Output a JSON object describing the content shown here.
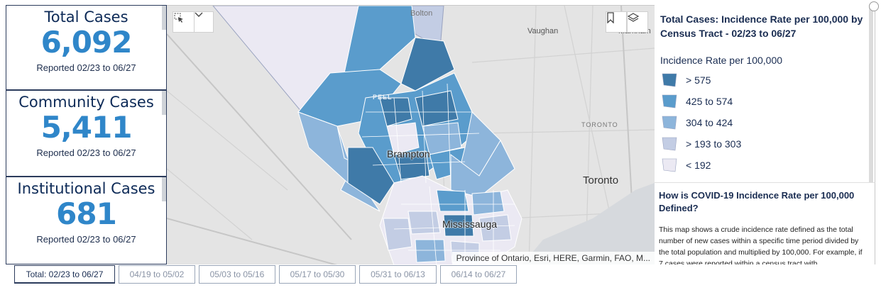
{
  "stats": [
    {
      "title": "Total Cases",
      "value": "6,092",
      "subtitle": "Reported 02/23 to 06/27"
    },
    {
      "title": "Community Cases",
      "value": "5,411",
      "subtitle": "Reported 02/23 to 06/27"
    },
    {
      "title": "Institutional Cases",
      "value": "681",
      "subtitle": "Reported 02/23 to 06/27"
    }
  ],
  "map": {
    "places": {
      "bolton": "Bolton",
      "vaughan": "Vaughan",
      "markham": "Markham",
      "peel": "PEEL",
      "brampton": "Brampton",
      "toronto_upper": "TORONTO",
      "toronto": "Toronto",
      "mississauga": "Mississauga"
    },
    "attribution": "Province of Ontario, Esri, HERE, Garmin, FAO, M...",
    "tools": {
      "select_icon": "select-tool-icon",
      "dropdown_icon": "chevron-down-icon",
      "bookmark_icon": "bookmark-icon",
      "layers_icon": "layers-icon"
    }
  },
  "legend": {
    "title": "Total Cases: Incidence Rate per 100,000 by Census Tract - 02/23 to 06/27",
    "heading": "Incidence Rate per 100,000",
    "classes": [
      {
        "label": "> 575",
        "color": "#3f7aa8"
      },
      {
        "label": "425 to 574",
        "color": "#5a9ccc"
      },
      {
        "label": "304 to 424",
        "color": "#8db5db"
      },
      {
        "label": "> 193 to 303",
        "color": "#c3cde4"
      },
      {
        "label": "< 192",
        "color": "#ebe9f3"
      }
    ]
  },
  "info": {
    "title": "How is COVID-19 Incidence Rate per 100,000 Defined?",
    "body": "This map shows a crude incidence rate defined as the total number of new cases within a specific time period divided by the total population and multiplied by 100,000. For example, if 7 cases were reported within a census tract with"
  },
  "tabs": [
    {
      "label": "Total: 02/23 to 06/27",
      "active": true
    },
    {
      "label": "04/19 to 05/02",
      "active": false
    },
    {
      "label": "05/03 to 05/16",
      "active": false
    },
    {
      "label": "05/17 to 05/30",
      "active": false
    },
    {
      "label": "05/31 to 06/13",
      "active": false
    },
    {
      "label": "06/14 to 06/27",
      "active": false
    }
  ]
}
